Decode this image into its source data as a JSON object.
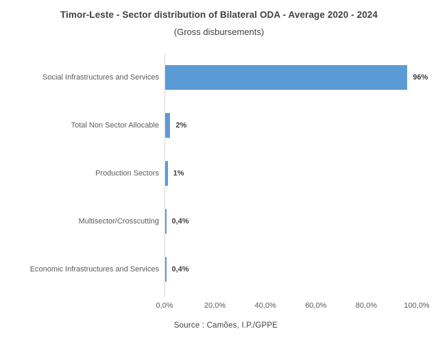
{
  "chart_data": {
    "type": "bar",
    "orientation": "horizontal",
    "title": "Timor-Leste - Sector distribution of Bilateral ODA - Average 2020 - 2024",
    "subtitle": "(Gross disbursements)",
    "categories": [
      "Social Infrastructures and Services",
      "Total Non Sector Allocable",
      "Production Sectors",
      "Multisector/Crosscutting",
      "Economic Infrastructures and Services"
    ],
    "values": [
      96,
      2,
      1,
      0.4,
      0.4
    ],
    "value_labels": [
      "96%",
      "2%",
      "1%",
      "0,4%",
      "0,4%"
    ],
    "x_ticks": [
      "0,0%",
      "20,0%",
      "40,0%",
      "60,0%",
      "80,0%",
      "100,0%"
    ],
    "x_tick_values": [
      0,
      20,
      40,
      60,
      80,
      100
    ],
    "xlim": [
      0,
      100
    ],
    "grid": false,
    "legend": "none",
    "bar_color": "#5b9bd5",
    "axis_line_color": "#d9d9d9",
    "label_color": "#595959",
    "data_label_color": "#404040",
    "source": "Source : Camões, I.P./GPPE"
  }
}
